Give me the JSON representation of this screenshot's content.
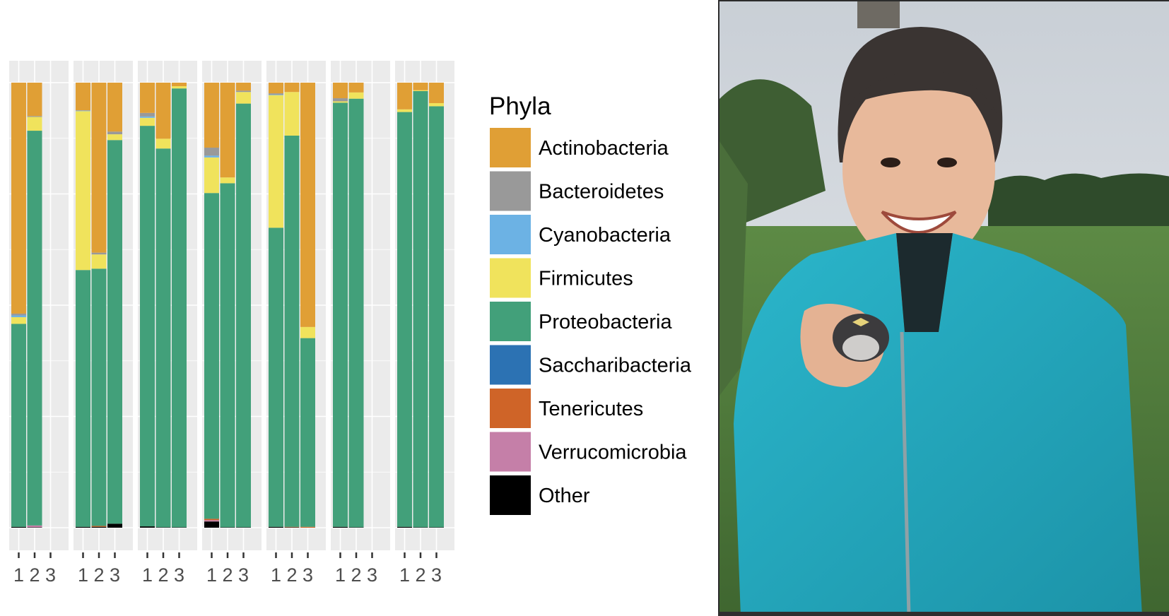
{
  "chart_data": {
    "type": "bar",
    "stacked": true,
    "ylim": [
      0,
      1
    ],
    "grid": true,
    "legend_position": "right",
    "legend": {
      "title": "Phyla",
      "entries": [
        {
          "name": "Actinobacteria",
          "color": "#E09F35"
        },
        {
          "name": "Bacteroidetes",
          "color": "#999999"
        },
        {
          "name": "Cyanobacteria",
          "color": "#6CB2E4"
        },
        {
          "name": "Firmicutes",
          "color": "#F0E35C"
        },
        {
          "name": "Proteobacteria",
          "color": "#42A07A"
        },
        {
          "name": "Saccharibacteria",
          "color": "#2C72B3"
        },
        {
          "name": "Tenericutes",
          "color": "#CF6428"
        },
        {
          "name": "Verrucomicrobia",
          "color": "#C57FA8"
        },
        {
          "name": "Other",
          "color": "#000000"
        }
      ]
    },
    "stack_order_bottom_to_top": [
      "Other",
      "Verrucomicrobia",
      "Tenericutes",
      "Saccharibacteria",
      "Proteobacteria",
      "Firmicutes",
      "Cyanobacteria",
      "Bacteroidetes",
      "Actinobacteria"
    ],
    "categories": [
      "1",
      "2",
      "3"
    ],
    "panels": [
      {
        "bars": [
          {
            "category": "1",
            "values": {
              "Other": 0.002,
              "Proteobacteria": 0.456,
              "Firmicutes": 0.015,
              "Cyanobacteria": 0.004,
              "Bacteroidetes": 0.004,
              "Actinobacteria": 0.519
            }
          },
          {
            "category": "2",
            "values": {
              "Other": 0.001,
              "Verrucomicrobia": 0.004,
              "Proteobacteria": 0.887,
              "Firmicutes": 0.031,
              "Bacteroidetes": 0.002,
              "Actinobacteria": 0.075
            }
          }
        ]
      },
      {
        "bars": [
          {
            "category": "1",
            "values": {
              "Other": 0.002,
              "Proteobacteria": 0.577,
              "Firmicutes": 0.357,
              "Cyanobacteria": 0.001,
              "Bacteroidetes": 0.001,
              "Actinobacteria": 0.062
            }
          },
          {
            "category": "2",
            "values": {
              "Other": 0.002,
              "Tenericutes": 0.002,
              "Proteobacteria": 0.578,
              "Firmicutes": 0.032,
              "Bacteroidetes": 0.004,
              "Actinobacteria": 0.382
            }
          },
          {
            "category": "3",
            "values": {
              "Other": 0.009,
              "Proteobacteria": 0.862,
              "Firmicutes": 0.013,
              "Bacteroidetes": 0.006,
              "Actinobacteria": 0.11
            }
          }
        ]
      },
      {
        "bars": [
          {
            "category": "1",
            "values": {
              "Other": 0.003,
              "Proteobacteria": 0.9,
              "Firmicutes": 0.018,
              "Cyanobacteria": 0.003,
              "Bacteroidetes": 0.008,
              "Actinobacteria": 0.068
            }
          },
          {
            "category": "2",
            "values": {
              "Other": 0.001,
              "Proteobacteria": 0.851,
              "Firmicutes": 0.022,
              "Actinobacteria": 0.126
            }
          },
          {
            "category": "3",
            "values": {
              "Other": 0.001,
              "Proteobacteria": 0.986,
              "Firmicutes": 0.005,
              "Actinobacteria": 0.008
            }
          }
        ]
      },
      {
        "bars": [
          {
            "category": "1",
            "values": {
              "Other": 0.014,
              "Tenericutes": 0.003,
              "Verrucomicrobia": 0.003,
              "Proteobacteria": 0.732,
              "Firmicutes": 0.08,
              "Cyanobacteria": 0.004,
              "Bacteroidetes": 0.018,
              "Actinobacteria": 0.146
            }
          },
          {
            "category": "2",
            "values": {
              "Other": 0.001,
              "Proteobacteria": 0.773,
              "Firmicutes": 0.013,
              "Actinobacteria": 0.213
            }
          },
          {
            "category": "3",
            "values": {
              "Other": 0.001,
              "Proteobacteria": 0.952,
              "Firmicutes": 0.026,
              "Bacteroidetes": 0.003,
              "Actinobacteria": 0.018
            }
          }
        ]
      },
      {
        "bars": [
          {
            "category": "1",
            "values": {
              "Other": 0.002,
              "Proteobacteria": 0.672,
              "Firmicutes": 0.298,
              "Cyanobacteria": 0.001,
              "Bacteroidetes": 0.003,
              "Actinobacteria": 0.024
            }
          },
          {
            "category": "2",
            "values": {
              "Other": 0.001,
              "Tenericutes": 0.001,
              "Proteobacteria": 0.879,
              "Firmicutes": 0.098,
              "Actinobacteria": 0.021
            }
          },
          {
            "category": "3",
            "values": {
              "Tenericutes": 0.002,
              "Proteobacteria": 0.424,
              "Firmicutes": 0.025,
              "Actinobacteria": 0.549
            }
          }
        ]
      },
      {
        "bars": [
          {
            "category": "1",
            "values": {
              "Other": 0.002,
              "Proteobacteria": 0.953,
              "Firmicutes": 0.003,
              "Bacteroidetes": 0.007,
              "Actinobacteria": 0.035
            }
          },
          {
            "category": "2",
            "values": {
              "Other": 0.001,
              "Proteobacteria": 0.963,
              "Firmicutes": 0.014,
              "Actinobacteria": 0.022
            }
          }
        ]
      },
      {
        "bars": [
          {
            "category": "1",
            "values": {
              "Other": 0.002,
              "Proteobacteria": 0.932,
              "Firmicutes": 0.006,
              "Actinobacteria": 0.06
            }
          },
          {
            "category": "2",
            "values": {
              "Other": 0.001,
              "Proteobacteria": 0.98,
              "Firmicutes": 0.002,
              "Actinobacteria": 0.017
            }
          },
          {
            "category": "3",
            "values": {
              "Other": 0.001,
              "Proteobacteria": 0.946,
              "Firmicutes": 0.007,
              "Actinobacteria": 0.046
            }
          }
        ]
      }
    ]
  },
  "photo": {
    "description_icon": "photo-of-person-holding-bird-chick",
    "jacket_color": "#23A9BF",
    "sky_color": "#D6DCE2",
    "grass_color": "#4F7A3A",
    "tree_color": "#2E4A2A"
  }
}
